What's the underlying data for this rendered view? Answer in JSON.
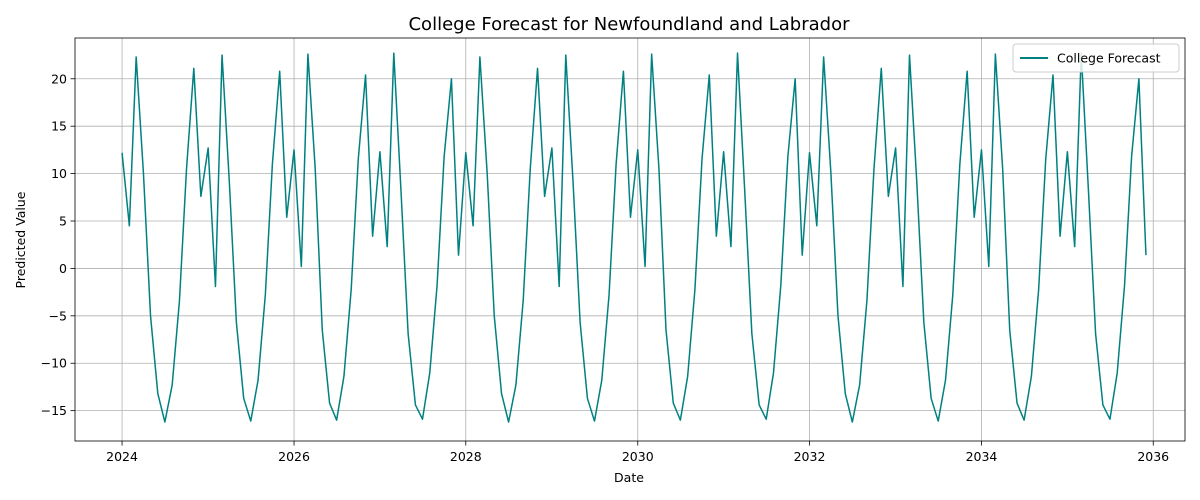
{
  "chart_data": {
    "type": "line",
    "title": "College Forecast for Newfoundland and Labrador",
    "xlabel": "Date",
    "ylabel": "Predicted Value",
    "grid": true,
    "legend_position": "top-right",
    "xlim": [
      "2023-06-15",
      "2036-05-15"
    ],
    "ylim": [
      -18.2,
      24.3
    ],
    "x_ticks": [
      {
        "value": "2024-01-01",
        "label": "2024"
      },
      {
        "value": "2026-01-01",
        "label": "2026"
      },
      {
        "value": "2028-01-01",
        "label": "2028"
      },
      {
        "value": "2030-01-01",
        "label": "2030"
      },
      {
        "value": "2032-01-01",
        "label": "2032"
      },
      {
        "value": "2034-01-01",
        "label": "2034"
      },
      {
        "value": "2036-01-01",
        "label": "2036"
      }
    ],
    "y_ticks": [
      {
        "value": -15,
        "label": "−15"
      },
      {
        "value": -10,
        "label": "−10"
      },
      {
        "value": -5,
        "label": "−5"
      },
      {
        "value": 0,
        "label": "0"
      },
      {
        "value": 5,
        "label": "5"
      },
      {
        "value": 10,
        "label": "10"
      },
      {
        "value": 15,
        "label": "15"
      },
      {
        "value": 20,
        "label": "20"
      }
    ],
    "series": [
      {
        "name": "College Forecast",
        "color": "#008080",
        "points": [
          [
            "2024-01-01",
            12.2
          ],
          [
            "2024-02-01",
            4.5
          ],
          [
            "2024-03-01",
            22.3
          ],
          [
            "2024-04-01",
            10.0
          ],
          [
            "2024-05-01",
            -5.0
          ],
          [
            "2024-06-01",
            -13.2
          ],
          [
            "2024-07-01",
            -16.2
          ],
          [
            "2024-08-01",
            -12.3
          ],
          [
            "2024-09-01",
            -3.4
          ],
          [
            "2024-10-01",
            10.5
          ],
          [
            "2024-11-01",
            21.1
          ],
          [
            "2024-12-01",
            7.6
          ],
          [
            "2025-01-01",
            12.7
          ],
          [
            "2025-02-01",
            -1.9
          ],
          [
            "2025-03-01",
            22.5
          ],
          [
            "2025-04-01",
            9.1
          ],
          [
            "2025-05-01",
            -5.7
          ],
          [
            "2025-06-01",
            -13.7
          ],
          [
            "2025-07-01",
            -16.1
          ],
          [
            "2025-08-01",
            -11.8
          ],
          [
            "2025-09-01",
            -2.8
          ],
          [
            "2025-10-01",
            11.0
          ],
          [
            "2025-11-01",
            20.8
          ],
          [
            "2025-12-01",
            5.4
          ],
          [
            "2026-01-01",
            12.5
          ],
          [
            "2026-02-01",
            0.2
          ],
          [
            "2026-03-01",
            22.6
          ],
          [
            "2026-04-01",
            10.5
          ],
          [
            "2026-05-01",
            -6.5
          ],
          [
            "2026-06-01",
            -14.2
          ],
          [
            "2026-07-01",
            -16.0
          ],
          [
            "2026-08-01",
            -11.4
          ],
          [
            "2026-09-01",
            -2.2
          ],
          [
            "2026-10-01",
            11.5
          ],
          [
            "2026-11-01",
            20.4
          ],
          [
            "2026-12-01",
            3.4
          ],
          [
            "2027-01-01",
            12.3
          ],
          [
            "2027-02-01",
            2.3
          ],
          [
            "2027-03-01",
            22.7
          ],
          [
            "2027-04-01",
            8.0
          ],
          [
            "2027-05-01",
            -6.9
          ],
          [
            "2027-06-01",
            -14.4
          ],
          [
            "2027-07-01",
            -15.9
          ],
          [
            "2027-08-01",
            -11.0
          ],
          [
            "2027-09-01",
            -1.8
          ],
          [
            "2027-10-01",
            11.8
          ],
          [
            "2027-11-01",
            20.0
          ],
          [
            "2027-12-01",
            1.4
          ],
          [
            "2028-01-01",
            12.2
          ],
          [
            "2028-02-01",
            4.5
          ],
          [
            "2028-03-01",
            22.3
          ],
          [
            "2028-04-01",
            10.0
          ],
          [
            "2028-05-01",
            -5.0
          ],
          [
            "2028-06-01",
            -13.2
          ],
          [
            "2028-07-01",
            -16.2
          ],
          [
            "2028-08-01",
            -12.3
          ],
          [
            "2028-09-01",
            -3.4
          ],
          [
            "2028-10-01",
            10.5
          ],
          [
            "2028-11-01",
            21.1
          ],
          [
            "2028-12-01",
            7.6
          ],
          [
            "2029-01-01",
            12.7
          ],
          [
            "2029-02-01",
            -1.9
          ],
          [
            "2029-03-01",
            22.5
          ],
          [
            "2029-04-01",
            9.1
          ],
          [
            "2029-05-01",
            -5.7
          ],
          [
            "2029-06-01",
            -13.7
          ],
          [
            "2029-07-01",
            -16.1
          ],
          [
            "2029-08-01",
            -11.8
          ],
          [
            "2029-09-01",
            -2.8
          ],
          [
            "2029-10-01",
            11.0
          ],
          [
            "2029-11-01",
            20.8
          ],
          [
            "2029-12-01",
            5.4
          ],
          [
            "2030-01-01",
            12.5
          ],
          [
            "2030-02-01",
            0.2
          ],
          [
            "2030-03-01",
            22.6
          ],
          [
            "2030-04-01",
            10.5
          ],
          [
            "2030-05-01",
            -6.5
          ],
          [
            "2030-06-01",
            -14.2
          ],
          [
            "2030-07-01",
            -16.0
          ],
          [
            "2030-08-01",
            -11.4
          ],
          [
            "2030-09-01",
            -2.2
          ],
          [
            "2030-10-01",
            11.5
          ],
          [
            "2030-11-01",
            20.4
          ],
          [
            "2030-12-01",
            3.4
          ],
          [
            "2031-01-01",
            12.3
          ],
          [
            "2031-02-01",
            2.3
          ],
          [
            "2031-03-01",
            22.7
          ],
          [
            "2031-04-01",
            8.0
          ],
          [
            "2031-05-01",
            -6.9
          ],
          [
            "2031-06-01",
            -14.4
          ],
          [
            "2031-07-01",
            -15.9
          ],
          [
            "2031-08-01",
            -11.0
          ],
          [
            "2031-09-01",
            -1.8
          ],
          [
            "2031-10-01",
            11.8
          ],
          [
            "2031-11-01",
            20.0
          ],
          [
            "2031-12-01",
            1.4
          ],
          [
            "2032-01-01",
            12.2
          ],
          [
            "2032-02-01",
            4.5
          ],
          [
            "2032-03-01",
            22.3
          ],
          [
            "2032-04-01",
            10.0
          ],
          [
            "2032-05-01",
            -5.0
          ],
          [
            "2032-06-01",
            -13.2
          ],
          [
            "2032-07-01",
            -16.2
          ],
          [
            "2032-08-01",
            -12.3
          ],
          [
            "2032-09-01",
            -3.4
          ],
          [
            "2032-10-01",
            10.5
          ],
          [
            "2032-11-01",
            21.1
          ],
          [
            "2032-12-01",
            7.6
          ],
          [
            "2033-01-01",
            12.7
          ],
          [
            "2033-02-01",
            -1.9
          ],
          [
            "2033-03-01",
            22.5
          ],
          [
            "2033-04-01",
            9.1
          ],
          [
            "2033-05-01",
            -5.7
          ],
          [
            "2033-06-01",
            -13.7
          ],
          [
            "2033-07-01",
            -16.1
          ],
          [
            "2033-08-01",
            -11.8
          ],
          [
            "2033-09-01",
            -2.8
          ],
          [
            "2033-10-01",
            11.0
          ],
          [
            "2033-11-01",
            20.8
          ],
          [
            "2033-12-01",
            5.4
          ],
          [
            "2034-01-01",
            12.5
          ],
          [
            "2034-02-01",
            0.2
          ],
          [
            "2034-03-01",
            22.6
          ],
          [
            "2034-04-01",
            10.5
          ],
          [
            "2034-05-01",
            -6.5
          ],
          [
            "2034-06-01",
            -14.2
          ],
          [
            "2034-07-01",
            -16.0
          ],
          [
            "2034-08-01",
            -11.4
          ],
          [
            "2034-09-01",
            -2.2
          ],
          [
            "2034-10-01",
            11.5
          ],
          [
            "2034-11-01",
            20.4
          ],
          [
            "2034-12-01",
            3.4
          ],
          [
            "2035-01-01",
            12.3
          ],
          [
            "2035-02-01",
            2.3
          ],
          [
            "2035-03-01",
            22.7
          ],
          [
            "2035-04-01",
            8.0
          ],
          [
            "2035-05-01",
            -6.9
          ],
          [
            "2035-06-01",
            -14.4
          ],
          [
            "2035-07-01",
            -15.9
          ],
          [
            "2035-08-01",
            -11.0
          ],
          [
            "2035-09-01",
            -1.8
          ],
          [
            "2035-10-01",
            11.8
          ],
          [
            "2035-11-01",
            20.0
          ],
          [
            "2035-12-01",
            1.4
          ]
        ]
      }
    ]
  }
}
